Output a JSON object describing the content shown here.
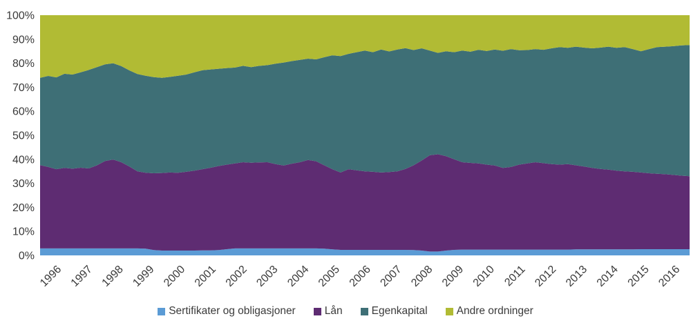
{
  "chart_data": {
    "type": "area",
    "stacked": true,
    "percent_stacked": true,
    "title": "",
    "xlabel": "",
    "ylabel": "",
    "ylim": [
      0,
      100
    ],
    "grid": false,
    "legend_position": "bottom",
    "background_color": "#ffffff",
    "axis_text_color": "#3a3a3a",
    "x_start_year": 1996,
    "x_step_years": 0.25,
    "categories": [
      "1996",
      "1997",
      "1998",
      "1999",
      "2000",
      "2001",
      "2002",
      "2003",
      "2004",
      "2005",
      "2006",
      "2007",
      "2008",
      "2009",
      "2010",
      "2011",
      "2012",
      "2013",
      "2014",
      "2015",
      "2016"
    ],
    "y_ticks": [
      "0%",
      "10%",
      "20%",
      "30%",
      "40%",
      "50%",
      "60%",
      "70%",
      "80%",
      "90%",
      "100%"
    ],
    "series": [
      {
        "name": "Sertifikater og obligasjoner",
        "color": "#5B9BD5",
        "values": [
          2.9,
          2.9,
          2.9,
          2.9,
          2.9,
          2.9,
          2.9,
          2.9,
          2.9,
          2.9,
          2.9,
          2.9,
          2.9,
          2.8,
          2.2,
          2.0,
          2.0,
          2.0,
          2.0,
          2.0,
          2.1,
          2.1,
          2.2,
          2.6,
          2.9,
          2.9,
          2.9,
          2.9,
          2.9,
          2.9,
          2.9,
          2.9,
          2.9,
          2.9,
          2.9,
          2.8,
          2.5,
          2.3,
          2.3,
          2.3,
          2.3,
          2.3,
          2.3,
          2.3,
          2.3,
          2.3,
          2.2,
          2.0,
          1.6,
          1.6,
          2.0,
          2.3,
          2.4,
          2.4,
          2.4,
          2.4,
          2.4,
          2.4,
          2.4,
          2.4,
          2.4,
          2.4,
          2.4,
          2.4,
          2.4,
          2.4,
          2.5,
          2.5,
          2.5,
          2.5,
          2.5,
          2.5,
          2.5,
          2.5,
          2.6,
          2.6,
          2.6,
          2.6,
          2.6,
          2.6,
          2.6
        ]
      },
      {
        "name": "Lån",
        "color": "#5E2C72",
        "values": [
          34.7,
          33.9,
          33.0,
          33.5,
          33.2,
          33.6,
          33.3,
          34.6,
          36.4,
          37.0,
          35.9,
          34.1,
          32.1,
          31.6,
          32.0,
          32.3,
          32.5,
          32.4,
          32.8,
          33.3,
          33.8,
          34.4,
          35.0,
          35.2,
          35.4,
          35.9,
          35.7,
          35.8,
          35.9,
          35.1,
          34.5,
          35.3,
          35.9,
          36.8,
          36.3,
          34.7,
          33.4,
          32.2,
          33.6,
          33.1,
          32.7,
          32.5,
          32.2,
          32.4,
          32.7,
          33.7,
          35.3,
          37.5,
          40.1,
          40.5,
          39.3,
          37.7,
          36.4,
          36.1,
          35.9,
          35.4,
          35.0,
          34.0,
          34.4,
          35.4,
          35.9,
          36.4,
          36.0,
          35.6,
          35.4,
          35.6,
          35.0,
          34.5,
          33.9,
          33.5,
          33.2,
          32.8,
          32.5,
          32.3,
          31.9,
          31.6,
          31.4,
          31.2,
          30.9,
          30.6,
          30.4
        ]
      },
      {
        "name": "Egenkapital",
        "color": "#3E6F76",
        "values": [
          36.3,
          37.9,
          38.2,
          39.2,
          39.2,
          39.7,
          41.0,
          40.9,
          40.2,
          40.1,
          40.0,
          40.0,
          40.5,
          40.4,
          40.0,
          39.6,
          39.8,
          40.4,
          40.5,
          40.9,
          41.2,
          40.9,
          40.5,
          40.2,
          39.9,
          40.1,
          39.8,
          40.2,
          40.4,
          41.8,
          42.9,
          42.7,
          42.6,
          42.2,
          42.4,
          45.0,
          47.4,
          48.5,
          48.0,
          49.2,
          50.3,
          49.8,
          51.2,
          50.2,
          50.7,
          50.3,
          48.0,
          46.7,
          43.6,
          42.2,
          43.7,
          44.6,
          46.5,
          46.3,
          47.3,
          47.3,
          48.3,
          48.8,
          49.1,
          47.6,
          47.2,
          47.1,
          47.2,
          48.2,
          48.9,
          48.4,
          49.4,
          49.5,
          49.8,
          50.5,
          51.2,
          51.1,
          51.7,
          51.1,
          50.5,
          51.7,
          52.7,
          53.1,
          53.6,
          54.2,
          54.6
        ]
      },
      {
        "name": "Andre ordninger",
        "color": "#B1BB34",
        "values": [
          26.1,
          25.3,
          25.9,
          24.4,
          24.7,
          23.8,
          22.8,
          21.6,
          20.5,
          20.0,
          21.2,
          23.0,
          24.5,
          25.2,
          25.8,
          26.1,
          25.7,
          25.2,
          24.7,
          23.8,
          22.9,
          22.6,
          22.3,
          22.0,
          21.8,
          21.1,
          21.6,
          21.1,
          20.8,
          20.2,
          19.7,
          19.1,
          18.6,
          18.1,
          18.4,
          17.5,
          16.7,
          17.0,
          16.1,
          15.4,
          14.7,
          15.4,
          14.3,
          15.1,
          14.3,
          13.7,
          14.5,
          13.8,
          14.7,
          15.7,
          15.0,
          15.4,
          14.7,
          15.2,
          14.4,
          14.9,
          14.3,
          14.8,
          14.1,
          14.6,
          14.5,
          14.1,
          14.4,
          13.8,
          13.3,
          13.6,
          13.1,
          13.5,
          13.8,
          13.5,
          13.1,
          13.6,
          13.3,
          14.1,
          15.0,
          14.1,
          13.3,
          13.1,
          12.9,
          12.6,
          12.4
        ]
      }
    ]
  }
}
